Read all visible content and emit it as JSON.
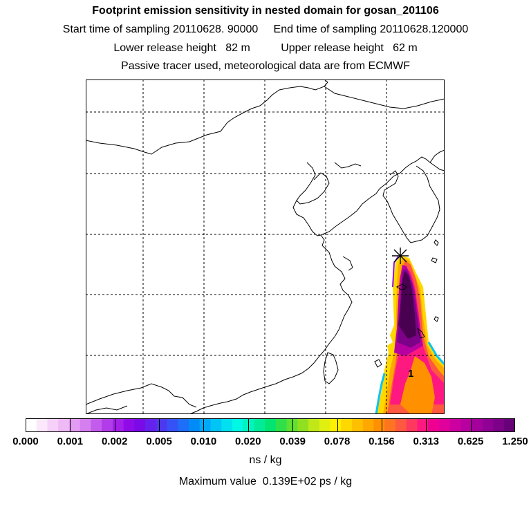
{
  "header": {
    "title": "Footprint emission sensitivity in nested domain for gosan_201106",
    "sampling": "Start time of sampling 20110628. 90000     End time of sampling 20110628.120000",
    "release": "Lower release height   82 m          Upper release height   62 m",
    "tracer": "Passive tracer used, meteorological data are from ECMWF"
  },
  "map": {
    "station_marker_label": "1",
    "features": [
      "coastline",
      "grid-lines",
      "station-marker",
      "sensitivity-plume"
    ]
  },
  "colorbar": {
    "tick_labels": [
      "0.000",
      "0.001",
      "0.002",
      "0.005",
      "0.010",
      "0.020",
      "0.039",
      "0.078",
      "0.156",
      "0.313",
      "0.625",
      "1.250"
    ],
    "colors": [
      "#ffffff",
      "#fbe8fb",
      "#f5d0f8",
      "#eebaf6",
      "#e39cf3",
      "#d57ef0",
      "#c35ced",
      "#b33cea",
      "#a320ea",
      "#8f0ce8",
      "#7a0ae8",
      "#6422ec",
      "#4d38f0",
      "#3652f6",
      "#1d6ef8",
      "#008cf8",
      "#00a8f8",
      "#00c4f6",
      "#00e0f0",
      "#00f8e4",
      "#00f4c0",
      "#00ec98",
      "#00e470",
      "#30e048",
      "#60e030",
      "#90e020",
      "#c0e818",
      "#e0f010",
      "#fff000",
      "#ffd800",
      "#ffc000",
      "#ffa800",
      "#ff9000",
      "#ff7420",
      "#ff5840",
      "#ff3860",
      "#ff1880",
      "#f00090",
      "#e0009c",
      "#cc00a0",
      "#b800a0",
      "#a4009c",
      "#900094",
      "#7c0088",
      "#680078"
    ],
    "units": "ns / kg"
  },
  "footer": {
    "max_value": "Maximum value  0.139E+02 ps / kg"
  }
}
